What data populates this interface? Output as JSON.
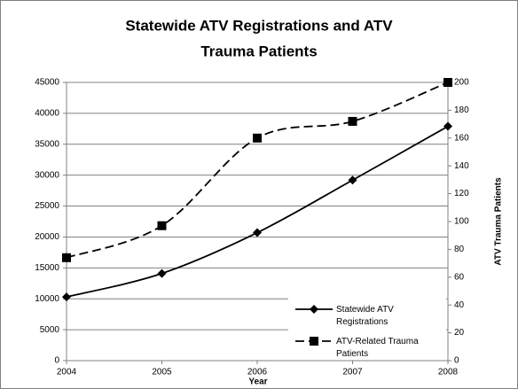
{
  "chart_data": {
    "type": "line",
    "title_lines": [
      "Statewide ATV Registrations and ATV",
      "Trauma Patients"
    ],
    "x_label": "Year",
    "y2_label": "ATV Trauma Patients",
    "x": [
      2004,
      2005,
      2006,
      2007,
      2008
    ],
    "xlim": [
      2004,
      2008
    ],
    "xticks": [
      2004,
      2005,
      2006,
      2007,
      2008
    ],
    "ylim": [
      0,
      45000
    ],
    "yticks": [
      0,
      5000,
      10000,
      15000,
      20000,
      25000,
      30000,
      35000,
      40000,
      45000
    ],
    "y2lim": [
      0,
      200
    ],
    "y2ticks": [
      0,
      20,
      40,
      60,
      80,
      100,
      120,
      140,
      160,
      180,
      200
    ],
    "grid": true,
    "legend": "lower right",
    "series": [
      {
        "name": "Statewide ATV Registrations",
        "color": "#000000",
        "marker": "diamond",
        "dash": "solid",
        "values": [
          10300,
          14100,
          20700,
          29200,
          37900
        ]
      },
      {
        "name": "ATV-Related Trauma Patients",
        "color": "#000000",
        "marker": "square",
        "dash": "dashed",
        "axis": "y2",
        "values": [
          74,
          97,
          160,
          172,
          200
        ]
      }
    ]
  }
}
